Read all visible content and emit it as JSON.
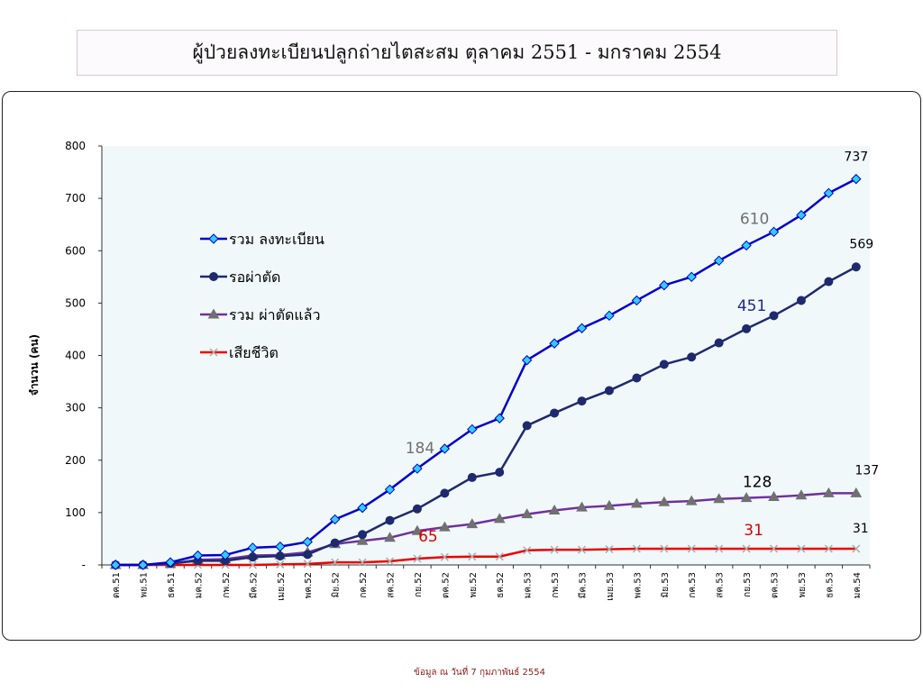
{
  "page": {
    "title": "ผู้ป่วยลงทะเบียนปลูกถ่ายไตสะสม ตุลาคม 2551 - มกราคม 2554",
    "footer": "ข้อมูล ณ วันที่  7 กุมภาพันธ์ 2554"
  },
  "chart_data": {
    "type": "line",
    "title": "",
    "xlabel": "",
    "ylabel": "จำนวน (คน)",
    "ylim": [
      0,
      800
    ],
    "yticks": [
      0,
      100,
      200,
      300,
      400,
      500,
      600,
      700,
      800
    ],
    "ytick_labels": [
      "-",
      "100",
      "200",
      "300",
      "400",
      "500",
      "600",
      "700",
      "800"
    ],
    "grid": false,
    "legend_position": "upper-left-inside",
    "categories": [
      "ตค.51",
      "พย.51",
      "ธค.51",
      "มค.52",
      "กพ.52",
      "มีค.52",
      "เมย.52",
      "พค.52",
      "มิย.52",
      "กค.52",
      "สค.52",
      "กย.52",
      "ตค.52",
      "พย.52",
      "ธค.52",
      "มค.53",
      "กพ.53",
      "มีค.53",
      "เมย.53",
      "พค.53",
      "มิย.53",
      "กค.53",
      "สค.53",
      "กย.53",
      "ตค.53",
      "พย.53",
      "ธค.53",
      "มค.54"
    ],
    "series": [
      {
        "name": "รวม ลงทะเบียน",
        "color": "#0000cc",
        "marker": "diamond",
        "marker_color": "#33ccff",
        "values": [
          0,
          0,
          5,
          18,
          19,
          33,
          35,
          44,
          87,
          109,
          144,
          184,
          222,
          259,
          280,
          391,
          423,
          452,
          476,
          505,
          534,
          550,
          581,
          610,
          636,
          668,
          710,
          737
        ]
      },
      {
        "name": "รอผ่าตัด",
        "color": "#1f2a6e",
        "marker": "circle",
        "marker_color": "#1f2a6e",
        "values": [
          0,
          0,
          3,
          8,
          8,
          15,
          17,
          20,
          42,
          58,
          85,
          107,
          137,
          167,
          177,
          266,
          290,
          313,
          333,
          357,
          383,
          397,
          424,
          451,
          476,
          505,
          541,
          569
        ]
      },
      {
        "name": "รวม ผ่าตัดแล้ว",
        "color": "#7030a0",
        "marker": "triangle",
        "marker_color": "#707070",
        "values": [
          0,
          0,
          2,
          10,
          11,
          18,
          19,
          24,
          40,
          46,
          52,
          65,
          72,
          78,
          88,
          97,
          104,
          110,
          113,
          117,
          120,
          122,
          126,
          128,
          130,
          133,
          137,
          137
        ]
      },
      {
        "name": "เสียชีวิต",
        "color": "#ee0000",
        "marker": "x",
        "marker_color": "#aaaaaa",
        "values": [
          0,
          0,
          0,
          0,
          0,
          0,
          1,
          2,
          5,
          5,
          7,
          12,
          15,
          16,
          16,
          28,
          29,
          29,
          30,
          31,
          31,
          31,
          31,
          31,
          31,
          31,
          31,
          31
        ]
      }
    ],
    "annotations": [
      {
        "text": "737",
        "series": 0,
        "index": 27,
        "color": "#000000"
      },
      {
        "text": "610",
        "series": 0,
        "index": 23,
        "color": "#707070"
      },
      {
        "text": "184",
        "series": 0,
        "index": 11,
        "color": "#707070"
      },
      {
        "text": "569",
        "series": 1,
        "index": 27,
        "color": "#000000"
      },
      {
        "text": "451",
        "series": 1,
        "index": 23,
        "color": "#1f2a8e"
      },
      {
        "text": "128",
        "series": 2,
        "index": 23,
        "color": "#000000"
      },
      {
        "text": "137",
        "series": 2,
        "index": 27,
        "color": "#000000"
      },
      {
        "text": "65",
        "series": 2,
        "index": 11,
        "color": "#dd0000"
      },
      {
        "text": "31",
        "series": 3,
        "index": 23,
        "color": "#dd0000"
      },
      {
        "text": "31",
        "series": 3,
        "index": 27,
        "color": "#000000"
      }
    ]
  }
}
